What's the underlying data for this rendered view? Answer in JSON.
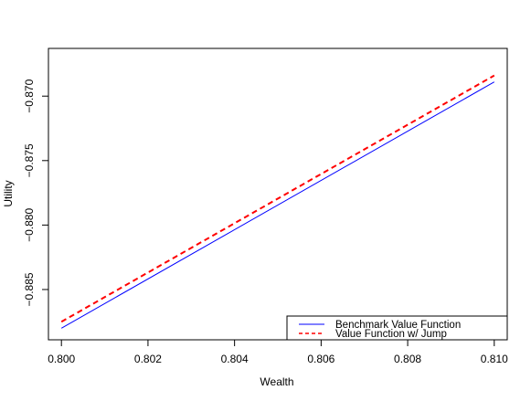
{
  "chart_data": {
    "type": "line",
    "title": "",
    "xlabel": "Wealth",
    "ylabel": "Utility",
    "xlim": [
      0.7997,
      0.8103
    ],
    "ylim": [
      -0.8889,
      -0.8663
    ],
    "xticks": [
      {
        "value": 0.8,
        "label": "0.800"
      },
      {
        "value": 0.802,
        "label": "0.802"
      },
      {
        "value": 0.804,
        "label": "0.804"
      },
      {
        "value": 0.806,
        "label": "0.806"
      },
      {
        "value": 0.808,
        "label": "0.808"
      },
      {
        "value": 0.81,
        "label": "0.810"
      }
    ],
    "yticks": [
      {
        "value": -0.87,
        "label": "−0.870"
      },
      {
        "value": -0.875,
        "label": "−0.875"
      },
      {
        "value": -0.88,
        "label": "−0.880"
      },
      {
        "value": -0.885,
        "label": "−0.885"
      }
    ],
    "grid": false,
    "legend_position": "bottom-right",
    "series": [
      {
        "name": "Benchmark Value Function",
        "color": "#0000ff",
        "style": "solid",
        "x": [
          0.8,
          0.81
        ],
        "y": [
          -0.888,
          -0.8689
        ]
      },
      {
        "name": "Value Function w/ Jump",
        "color": "#ff0000",
        "style": "dashed",
        "x": [
          0.8,
          0.81
        ],
        "y": [
          -0.8875,
          -0.8684
        ]
      }
    ]
  }
}
